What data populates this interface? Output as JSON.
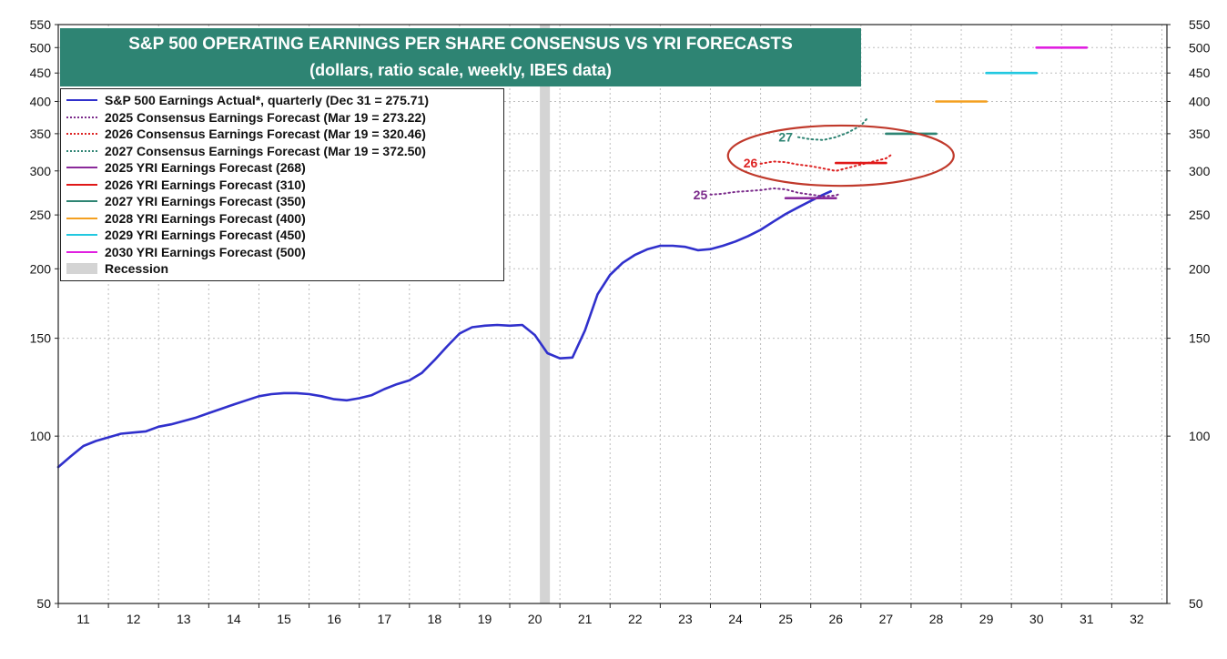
{
  "chart_data": {
    "type": "line",
    "title": "S&P 500 OPERATING EARNINGS PER SHARE CONSENSUS VS YRI FORECASTS",
    "subtitle": "(dollars, ratio scale, weekly, IBES data)",
    "xlabel": "",
    "ylabel": "",
    "y_scale": "log",
    "ylim": [
      50,
      550
    ],
    "xlim": [
      2010.5,
      2032.6
    ],
    "grid": true,
    "legend_position": "top-left",
    "x_ticks": [
      {
        "label": "11",
        "x": 2011.0
      },
      {
        "label": "12",
        "x": 2012.0
      },
      {
        "label": "13",
        "x": 2013.0
      },
      {
        "label": "14",
        "x": 2014.0
      },
      {
        "label": "15",
        "x": 2015.0
      },
      {
        "label": "16",
        "x": 2016.0
      },
      {
        "label": "17",
        "x": 2017.0
      },
      {
        "label": "18",
        "x": 2018.0
      },
      {
        "label": "19",
        "x": 2019.0
      },
      {
        "label": "20",
        "x": 2020.0
      },
      {
        "label": "21",
        "x": 2021.0
      },
      {
        "label": "22",
        "x": 2022.0
      },
      {
        "label": "23",
        "x": 2023.0
      },
      {
        "label": "24",
        "x": 2024.0
      },
      {
        "label": "25",
        "x": 2025.0
      },
      {
        "label": "26",
        "x": 2026.0
      },
      {
        "label": "27",
        "x": 2027.0
      },
      {
        "label": "28",
        "x": 2028.0
      },
      {
        "label": "29",
        "x": 2029.0
      },
      {
        "label": "30",
        "x": 2030.0
      },
      {
        "label": "31",
        "x": 2031.0
      },
      {
        "label": "32",
        "x": 2032.0
      }
    ],
    "y_ticks": [
      {
        "label": "550",
        "value": 550
      },
      {
        "label": "500",
        "value": 500
      },
      {
        "label": "450",
        "value": 450
      },
      {
        "label": "400",
        "value": 400
      },
      {
        "label": "350",
        "value": 350
      },
      {
        "label": "300",
        "value": 300
      },
      {
        "label": "250",
        "value": 250
      },
      {
        "label": "200",
        "value": 200
      },
      {
        "label": "150",
        "value": 150
      },
      {
        "label": "100",
        "value": 100
      },
      {
        "label": "50",
        "value": 50
      }
    ],
    "recession": {
      "name": "Recession",
      "start": 2020.1,
      "end": 2020.3,
      "color": "#d4d4d4"
    },
    "series": [
      {
        "name": "S&P 500 Earnings Actual*, quarterly (Dec 31 = 275.71)",
        "style": "solid",
        "color": "#3030cc",
        "points": [
          [
            2010.5,
            88
          ],
          [
            2010.75,
            92
          ],
          [
            2011.0,
            96
          ],
          [
            2011.25,
            98
          ],
          [
            2011.5,
            99.5
          ],
          [
            2011.75,
            101
          ],
          [
            2012.0,
            101.5
          ],
          [
            2012.25,
            102
          ],
          [
            2012.5,
            104
          ],
          [
            2012.75,
            105
          ],
          [
            2013.0,
            106.5
          ],
          [
            2013.25,
            108
          ],
          [
            2013.5,
            110
          ],
          [
            2013.75,
            112
          ],
          [
            2014.0,
            114
          ],
          [
            2014.25,
            116
          ],
          [
            2014.5,
            118
          ],
          [
            2014.75,
            119
          ],
          [
            2015.0,
            119.5
          ],
          [
            2015.25,
            119.5
          ],
          [
            2015.5,
            119
          ],
          [
            2015.75,
            118
          ],
          [
            2016.0,
            116.5
          ],
          [
            2016.25,
            116
          ],
          [
            2016.5,
            117
          ],
          [
            2016.75,
            118.5
          ],
          [
            2017.0,
            121.5
          ],
          [
            2017.25,
            124
          ],
          [
            2017.5,
            126
          ],
          [
            2017.75,
            130
          ],
          [
            2018.0,
            137
          ],
          [
            2018.25,
            145
          ],
          [
            2018.5,
            153
          ],
          [
            2018.75,
            157
          ],
          [
            2019.0,
            158
          ],
          [
            2019.25,
            158.5
          ],
          [
            2019.5,
            158
          ],
          [
            2019.75,
            158.5
          ],
          [
            2020.0,
            152
          ],
          [
            2020.25,
            141
          ],
          [
            2020.5,
            138
          ],
          [
            2020.75,
            138.5
          ],
          [
            2021.0,
            155
          ],
          [
            2021.25,
            180
          ],
          [
            2021.5,
            195
          ],
          [
            2021.75,
            205
          ],
          [
            2022.0,
            212
          ],
          [
            2022.25,
            217
          ],
          [
            2022.5,
            220
          ],
          [
            2022.75,
            220
          ],
          [
            2023.0,
            219
          ],
          [
            2023.25,
            216
          ],
          [
            2023.5,
            217
          ],
          [
            2023.75,
            220
          ],
          [
            2024.0,
            224
          ],
          [
            2024.25,
            229
          ],
          [
            2024.5,
            235
          ],
          [
            2024.75,
            243
          ],
          [
            2025.0,
            251
          ],
          [
            2025.25,
            258
          ],
          [
            2025.5,
            265
          ],
          [
            2025.75,
            272
          ],
          [
            2025.9,
            275.71
          ]
        ]
      },
      {
        "name": "2025 Consensus Earnings Forecast (Mar 19 = 273.22)",
        "style": "dotted",
        "color": "#7a2a8a",
        "label": "25",
        "points": [
          [
            2023.5,
            272
          ],
          [
            2023.75,
            273
          ],
          [
            2024.0,
            275
          ],
          [
            2024.25,
            276
          ],
          [
            2024.5,
            277
          ],
          [
            2024.75,
            279
          ],
          [
            2025.0,
            278
          ],
          [
            2025.25,
            274
          ],
          [
            2025.5,
            272
          ],
          [
            2025.75,
            270
          ],
          [
            2026.0,
            271
          ],
          [
            2026.1,
            273.22
          ]
        ]
      },
      {
        "name": "2026 Consensus Earnings Forecast (Mar 19 = 320.46)",
        "style": "dotted",
        "color": "#dd2222",
        "label": "26",
        "points": [
          [
            2024.5,
            309
          ],
          [
            2024.75,
            312
          ],
          [
            2025.0,
            311
          ],
          [
            2025.25,
            308
          ],
          [
            2025.5,
            306
          ],
          [
            2025.75,
            303
          ],
          [
            2026.0,
            300
          ],
          [
            2026.25,
            304
          ],
          [
            2026.5,
            308
          ],
          [
            2026.75,
            312
          ],
          [
            2027.0,
            316
          ],
          [
            2027.1,
            320.46
          ]
        ]
      },
      {
        "name": "2027 Consensus Earnings Forecast (Mar 19 = 372.50)",
        "style": "dotted",
        "color": "#2e8473",
        "label": "27",
        "points": [
          [
            2025.25,
            345
          ],
          [
            2025.5,
            342
          ],
          [
            2025.75,
            341
          ],
          [
            2026.0,
            345
          ],
          [
            2026.25,
            352
          ],
          [
            2026.5,
            362
          ],
          [
            2026.62,
            372.5
          ]
        ]
      },
      {
        "name": "2025 YRI Earnings Forecast (268)",
        "style": "solid",
        "color": "#8a2a9a",
        "points": [
          [
            2025.0,
            268
          ],
          [
            2026.0,
            268
          ]
        ]
      },
      {
        "name": "2026 YRI Earnings Forecast (310)",
        "style": "solid",
        "color": "#e01818",
        "points": [
          [
            2026.0,
            310
          ],
          [
            2027.0,
            310
          ]
        ]
      },
      {
        "name": "2027 YRI Earnings Forecast (350)",
        "style": "solid",
        "color": "#2e8473",
        "points": [
          [
            2027.0,
            350
          ],
          [
            2028.0,
            350
          ]
        ]
      },
      {
        "name": "2028 YRI Earnings Forecast (400)",
        "style": "solid",
        "color": "#f4a020",
        "points": [
          [
            2028.0,
            400
          ],
          [
            2029.0,
            400
          ]
        ]
      },
      {
        "name": "2029 YRI Earnings Forecast (450)",
        "style": "solid",
        "color": "#22c8e0",
        "points": [
          [
            2029.0,
            450
          ],
          [
            2030.0,
            450
          ]
        ]
      },
      {
        "name": "2030 YRI Earnings Forecast (500)",
        "style": "solid",
        "color": "#e020e0",
        "points": [
          [
            2030.0,
            500
          ],
          [
            2031.0,
            500
          ]
        ]
      }
    ],
    "annotations": [
      {
        "text": "25",
        "x": 2023.3,
        "y": 272,
        "color": "#7a2a8a"
      },
      {
        "text": "26",
        "x": 2024.3,
        "y": 310,
        "color": "#dd2222"
      },
      {
        "text": "27",
        "x": 2025.0,
        "y": 345,
        "color": "#2e8473"
      }
    ],
    "highlight_ellipse": {
      "color": "#c0392b",
      "x_center": 2026.1,
      "y_center": 320,
      "x_half_width": 2.25,
      "y_upper": 362,
      "y_lower": 282
    }
  }
}
